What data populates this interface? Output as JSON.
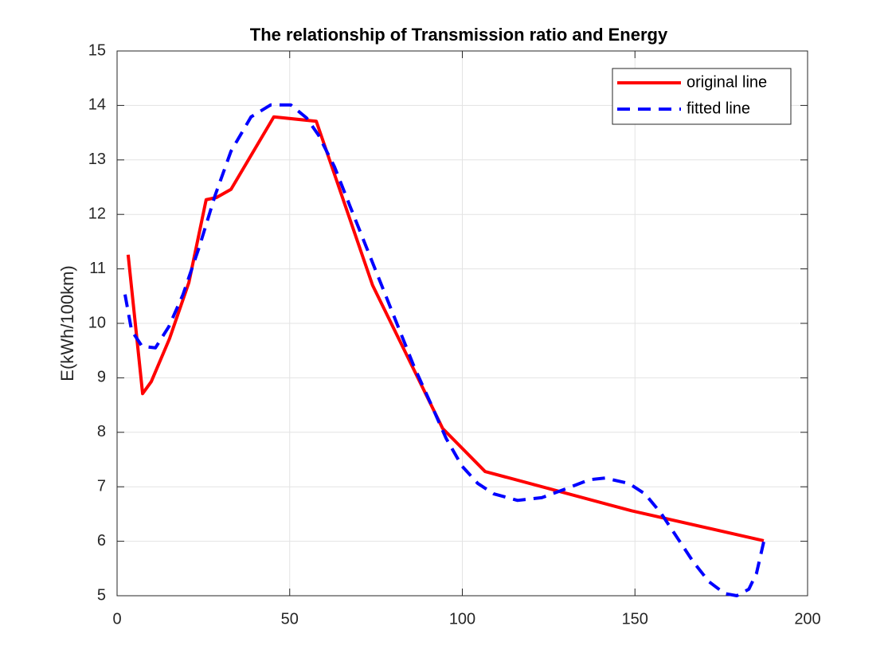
{
  "chart_data": {
    "type": "line",
    "title": "The relationship of Transmission ratio and Energy",
    "y_label": "E(kWh/100km)",
    "xlim": [
      0,
      200
    ],
    "xticks": [
      0,
      50,
      100,
      150,
      200
    ],
    "ylim": [
      5,
      15
    ],
    "yticks": [
      5,
      6,
      7,
      8,
      9,
      10,
      11,
      12,
      13,
      14,
      15
    ],
    "grid": true,
    "legend": "upper right",
    "series": [
      {
        "name": "original line",
        "color": "#ff0000",
        "style": "solid",
        "x": [
          3.2,
          7.4,
          9.9,
          15.2,
          20.8,
          25.8,
          28.8,
          33.0,
          45.4,
          57.7,
          74.0,
          94.3,
          106.6,
          149.0,
          187.3
        ],
        "values": [
          11.26,
          8.71,
          8.93,
          9.72,
          10.75,
          12.27,
          12.31,
          12.46,
          13.79,
          13.71,
          10.7,
          8.07,
          7.28,
          6.56,
          6.01
        ]
      },
      {
        "name": "fitted line",
        "color": "#0000ff",
        "style": "dashed",
        "x": [
          2.3,
          4.2,
          7.2,
          11.1,
          15.0,
          19.1,
          23.8,
          28.4,
          33.0,
          38.8,
          44.5,
          50.3,
          54.9,
          58.4,
          63.0,
          67.6,
          72.2,
          76.8,
          81.4,
          86.0,
          90.7,
          95.3,
          99.9,
          104.5,
          109.1,
          116.0,
          123.0,
          129.9,
          136.8,
          141.4,
          148.3,
          152.9,
          157.6,
          162.2,
          166.8,
          171.4,
          176.0,
          179.5,
          183.0,
          185.2,
          187.3
        ],
        "values": [
          10.53,
          9.87,
          9.58,
          9.55,
          9.94,
          10.53,
          11.4,
          12.35,
          13.16,
          13.79,
          14.01,
          14.01,
          13.77,
          13.45,
          12.87,
          12.13,
          11.4,
          10.67,
          9.94,
          9.21,
          8.55,
          7.89,
          7.38,
          7.06,
          6.87,
          6.75,
          6.8,
          6.96,
          7.13,
          7.16,
          7.06,
          6.87,
          6.51,
          6.07,
          5.63,
          5.26,
          5.04,
          5.0,
          5.12,
          5.41,
          5.99
        ]
      }
    ]
  }
}
